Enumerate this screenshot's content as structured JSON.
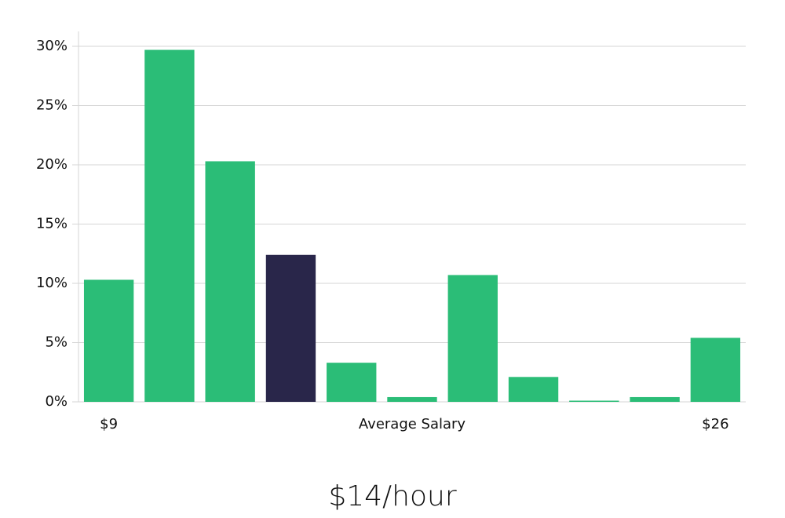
{
  "chart_data": {
    "type": "bar",
    "title": "$14/hour",
    "x_label": "Average Salary",
    "categories": [
      "$9",
      null,
      null,
      null,
      null,
      null,
      null,
      null,
      null,
      null,
      "$26"
    ],
    "values": [
      10.3,
      29.7,
      20.3,
      12.4,
      3.3,
      0.4,
      10.7,
      2.1,
      0.1,
      0.4,
      5.4
    ],
    "colors": [
      "#2bbd77",
      "#2bbd77",
      "#2bbd77",
      "#29264a",
      "#2bbd77",
      "#2bbd77",
      "#2bbd77",
      "#2bbd77",
      "#2bbd77",
      "#2bbd77",
      "#2bbd77"
    ],
    "ylim": [
      0,
      30
    ],
    "yticks": [
      {
        "value": 0,
        "label": "0%"
      },
      {
        "value": 5,
        "label": "5%"
      },
      {
        "value": 10,
        "label": "10%"
      },
      {
        "value": 15,
        "label": "15%"
      },
      {
        "value": 20,
        "label": "20%"
      },
      {
        "value": 25,
        "label": "25%"
      },
      {
        "value": 30,
        "label": "30%"
      }
    ],
    "grid": true
  }
}
